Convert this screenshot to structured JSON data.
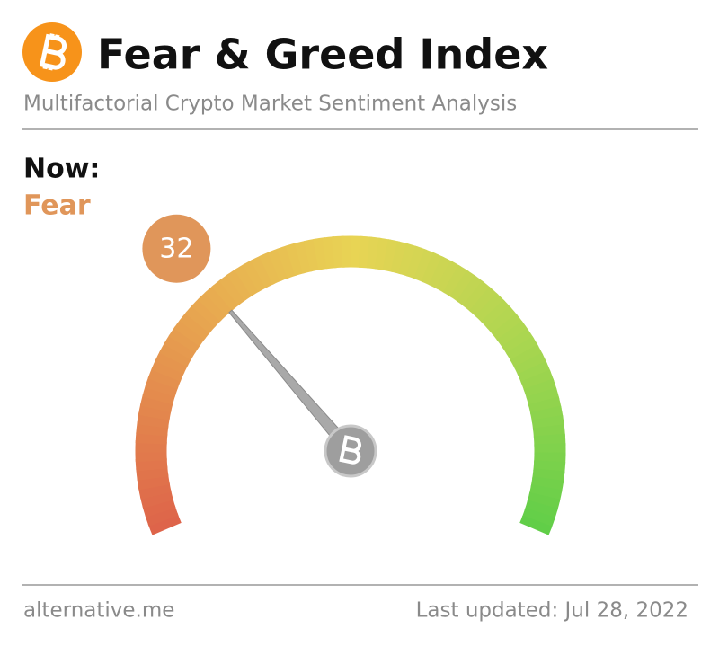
{
  "header": {
    "title": "Fear & Greed Index",
    "subtitle": "Multifactorial Crypto Market Sentiment Analysis"
  },
  "chart_data": {
    "type": "gauge",
    "label": "Now:",
    "classification": "Fear",
    "value": 32,
    "color": "#e0965a",
    "ylim": [
      0,
      100
    ]
  },
  "footer": {
    "source": "alternative.me",
    "updated": "Last updated: Jul 28, 2022"
  }
}
